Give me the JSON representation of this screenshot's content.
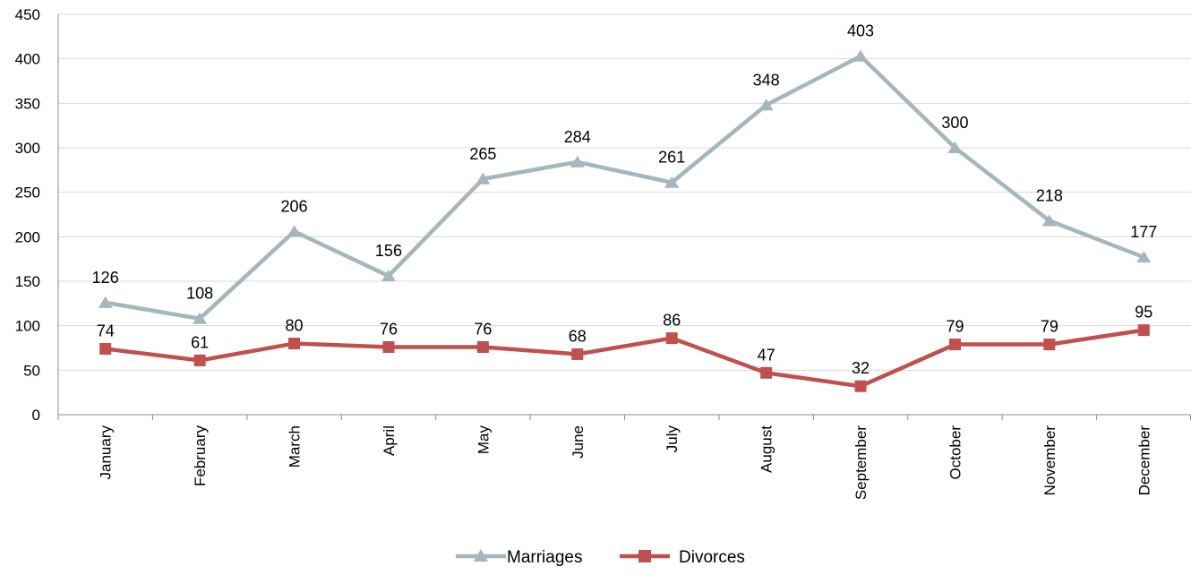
{
  "chart_data": {
    "type": "line",
    "title": "",
    "xlabel": "",
    "ylabel": "",
    "categories": [
      "January",
      "February",
      "March",
      "April",
      "May",
      "June",
      "July",
      "August",
      "September",
      "October",
      "November",
      "December"
    ],
    "ylim": [
      0,
      450
    ],
    "yticks": [
      "0",
      "50",
      "100",
      "150",
      "200",
      "250",
      "300",
      "350",
      "400",
      "450"
    ],
    "grid": true,
    "legend_position": "bottom",
    "series": [
      {
        "name": "Marriages",
        "values": [
          126,
          108,
          206,
          156,
          265,
          284,
          261,
          348,
          403,
          300,
          218,
          177
        ],
        "color": "#a5b6bd",
        "marker": "triangle"
      },
      {
        "name": "Divorces",
        "values": [
          74,
          61,
          80,
          76,
          76,
          68,
          86,
          47,
          32,
          79,
          79,
          95
        ],
        "color": "#c0504d",
        "marker": "square"
      }
    ]
  }
}
